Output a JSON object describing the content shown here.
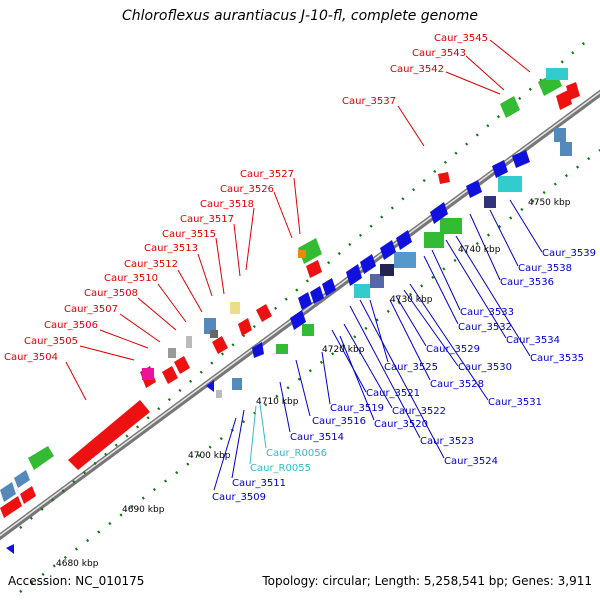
{
  "title": "Chloroflexus aurantiacus J-10-fl, complete genome",
  "footer": {
    "accession": "Accession: NC_010175",
    "summary": "Topology: circular; Length: 5,258,541 bp; Genes: 3,911"
  },
  "colors": {
    "top_label": "#e00000",
    "bottom_label": "#0000cc",
    "rna_label": "#33bbcc",
    "tick": "#007700",
    "backbone": "#888888"
  },
  "kbp_ticks": [
    "4680 kbp",
    "4690 kbp",
    "4700 kbp",
    "4710 kbp",
    "4720 kbp",
    "4730 kbp",
    "4740 kbp",
    "4750 kbp"
  ],
  "labels_top": [
    "Caur_3504",
    "Caur_3505",
    "Caur_3506",
    "Caur_3507",
    "Caur_3508",
    "Caur_3510",
    "Caur_3512",
    "Caur_3513",
    "Caur_3515",
    "Caur_3517",
    "Caur_3518",
    "Caur_3526",
    "Caur_3527",
    "Caur_3537",
    "Caur_3542",
    "Caur_3543",
    "Caur_3545"
  ],
  "labels_bottom": [
    "Caur_3509",
    "Caur_3511",
    "Caur_R0055",
    "Caur_R0056",
    "Caur_3514",
    "Caur_3516",
    "Caur_3519",
    "Caur_3520",
    "Caur_3521",
    "Caur_3522",
    "Caur_3523",
    "Caur_3524",
    "Caur_3525",
    "Caur_3528",
    "Caur_3529",
    "Caur_3530",
    "Caur_3531",
    "Caur_3532",
    "Caur_3533",
    "Caur_3534",
    "Caur_3535",
    "Caur_3536",
    "Caur_3538",
    "Caur_3539"
  ]
}
